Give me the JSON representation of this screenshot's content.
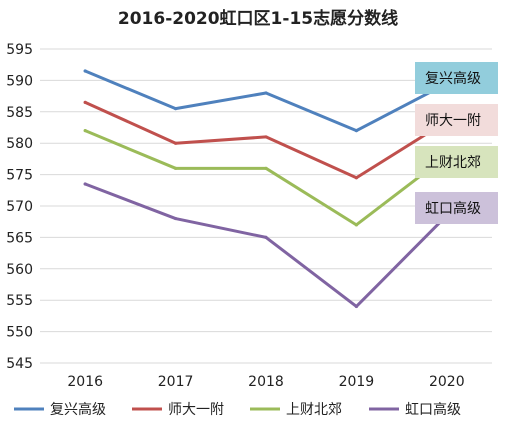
{
  "chart_data": {
    "type": "line",
    "title": "2016-2020虹口区1-15志愿分数线",
    "x": [
      "2016",
      "2017",
      "2018",
      "2019",
      "2020"
    ],
    "ylim": [
      545,
      595
    ],
    "yticks": [
      545,
      550,
      555,
      560,
      565,
      570,
      575,
      580,
      585,
      590,
      595
    ],
    "grid": true,
    "legend_position": "bottom",
    "series": [
      {
        "name": "复兴高级",
        "color": "#4f81bd",
        "tag_bg": "#92cddc",
        "values": [
          591.5,
          585.5,
          588,
          582,
          589.5
        ]
      },
      {
        "name": "师大一附",
        "color": "#c0504d",
        "tag_bg": "#f2dcdb",
        "values": [
          586.5,
          580,
          581,
          574.5,
          583.5
        ]
      },
      {
        "name": "上财北郊",
        "color": "#9bbb59",
        "tag_bg": "#d7e4bd",
        "values": [
          582,
          576,
          576,
          567,
          578
        ]
      },
      {
        "name": "虹口高级",
        "color": "#8064a2",
        "tag_bg": "#ccc1da",
        "values": [
          573.5,
          568,
          565,
          554,
          568.5
        ]
      }
    ]
  }
}
